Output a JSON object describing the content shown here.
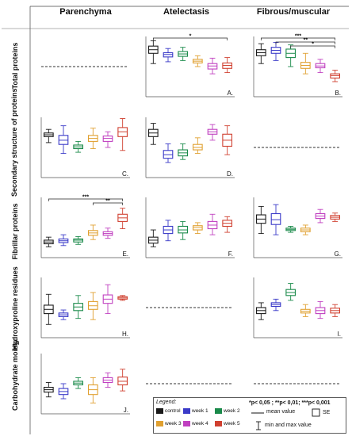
{
  "columns": [
    "Parenchyma",
    "Atelectasis",
    "Fibrous/muscular"
  ],
  "rows": [
    "Total proteins",
    "Secondary structure of proteins",
    "Fibrillar proteins",
    "Hydroxyproline residues",
    "Carbohydrate moiety"
  ],
  "groups": [
    "control",
    "week 1",
    "week 2",
    "week 3",
    "week 4",
    "week 5"
  ],
  "group_colors": [
    "#1a1a1a",
    "#3a3ac8",
    "#1a8a4a",
    "#e0a030",
    "#c040c0",
    "#d04030"
  ],
  "legend": {
    "title": "Legend:",
    "significance": "*p< 0,05 ; **p< 0,01; ***p< 0,001",
    "mean_label": "mean value",
    "se_label": "SE",
    "range_label": "min and max value"
  },
  "chart_data": [
    {
      "type": "box",
      "panel_label": "",
      "row": "Total proteins",
      "column": "Parenchyma",
      "empty": true
    },
    {
      "type": "box",
      "panel_label": "A.",
      "row": "Total proteins",
      "column": "Atelectasis",
      "empty": false,
      "series": [
        {
          "name": "control",
          "min": 0.55,
          "q1": 0.72,
          "mean": 0.78,
          "q3": 0.84,
          "max": 0.93
        },
        {
          "name": "week 1",
          "min": 0.58,
          "q1": 0.66,
          "mean": 0.7,
          "q3": 0.73,
          "max": 0.8
        },
        {
          "name": "week 2",
          "min": 0.6,
          "q1": 0.67,
          "mean": 0.71,
          "q3": 0.75,
          "max": 0.82
        },
        {
          "name": "week 3",
          "min": 0.5,
          "q1": 0.56,
          "mean": 0.59,
          "q3": 0.62,
          "max": 0.68
        },
        {
          "name": "week 4",
          "min": 0.38,
          "q1": 0.46,
          "mean": 0.51,
          "q3": 0.55,
          "max": 0.64
        },
        {
          "name": "week 5",
          "min": 0.4,
          "q1": 0.47,
          "mean": 0.52,
          "q3": 0.56,
          "max": 0.65
        }
      ],
      "significance": [
        {
          "from": 0,
          "to": 5,
          "label": "*"
        }
      ]
    },
    {
      "type": "box",
      "panel_label": "B.",
      "row": "Total proteins",
      "column": "Fibrous/muscular",
      "empty": false,
      "series": [
        {
          "name": "control",
          "min": 0.55,
          "q1": 0.68,
          "mean": 0.73,
          "q3": 0.78,
          "max": 0.88
        },
        {
          "name": "week 1",
          "min": 0.6,
          "q1": 0.72,
          "mean": 0.77,
          "q3": 0.82,
          "max": 0.9
        },
        {
          "name": "week 2",
          "min": 0.5,
          "q1": 0.65,
          "mean": 0.72,
          "q3": 0.79,
          "max": 0.86
        },
        {
          "name": "week 3",
          "min": 0.38,
          "q1": 0.47,
          "mean": 0.52,
          "q3": 0.57,
          "max": 0.72
        },
        {
          "name": "week 4",
          "min": 0.4,
          "q1": 0.48,
          "mean": 0.51,
          "q3": 0.55,
          "max": 0.62
        },
        {
          "name": "week 5",
          "min": 0.25,
          "q1": 0.31,
          "mean": 0.35,
          "q3": 0.38,
          "max": 0.44
        }
      ],
      "significance": [
        {
          "from": 0,
          "to": 5,
          "label": "***"
        },
        {
          "from": 1,
          "to": 5,
          "label": "**"
        },
        {
          "from": 2,
          "to": 5,
          "label": "*"
        }
      ]
    },
    {
      "type": "box",
      "panel_label": "C.",
      "row": "Secondary structure of proteins",
      "column": "Parenchyma",
      "empty": false,
      "series": [
        {
          "name": "control",
          "min": 0.58,
          "q1": 0.68,
          "mean": 0.71,
          "q3": 0.74,
          "max": 0.8
        },
        {
          "name": "week 1",
          "min": 0.4,
          "q1": 0.55,
          "mean": 0.62,
          "q3": 0.7,
          "max": 0.86
        },
        {
          "name": "week 2",
          "min": 0.42,
          "q1": 0.48,
          "mean": 0.51,
          "q3": 0.54,
          "max": 0.6
        },
        {
          "name": "week 3",
          "min": 0.48,
          "q1": 0.6,
          "mean": 0.65,
          "q3": 0.7,
          "max": 0.82
        },
        {
          "name": "week 4",
          "min": 0.5,
          "q1": 0.6,
          "mean": 0.65,
          "q3": 0.69,
          "max": 0.76
        },
        {
          "name": "week 5",
          "min": 0.45,
          "q1": 0.68,
          "mean": 0.76,
          "q3": 0.83,
          "max": 0.98
        }
      ],
      "significance": []
    },
    {
      "type": "box",
      "panel_label": "D.",
      "row": "Secondary structure of proteins",
      "column": "Atelectasis",
      "empty": false,
      "series": [
        {
          "name": "control",
          "min": 0.55,
          "q1": 0.68,
          "mean": 0.74,
          "q3": 0.8,
          "max": 0.9
        },
        {
          "name": "week 1",
          "min": 0.25,
          "q1": 0.32,
          "mean": 0.38,
          "q3": 0.45,
          "max": 0.56
        },
        {
          "name": "week 2",
          "min": 0.3,
          "q1": 0.36,
          "mean": 0.41,
          "q3": 0.46,
          "max": 0.56
        },
        {
          "name": "week 3",
          "min": 0.4,
          "q1": 0.46,
          "mean": 0.5,
          "q3": 0.55,
          "max": 0.66
        },
        {
          "name": "week 4",
          "min": 0.62,
          "q1": 0.72,
          "mean": 0.76,
          "q3": 0.8,
          "max": 0.88
        },
        {
          "name": "week 5",
          "min": 0.38,
          "q1": 0.52,
          "mean": 0.62,
          "q3": 0.72,
          "max": 0.86
        }
      ],
      "significance": []
    },
    {
      "type": "box",
      "panel_label": "",
      "row": "Secondary structure of proteins",
      "column": "Fibrous/muscular",
      "empty": true
    },
    {
      "type": "box",
      "panel_label": "E.",
      "row": "Fibrillar proteins",
      "column": "Parenchyma",
      "empty": false,
      "series": [
        {
          "name": "control",
          "min": 0.18,
          "q1": 0.23,
          "mean": 0.26,
          "q3": 0.29,
          "max": 0.34
        },
        {
          "name": "week 1",
          "min": 0.2,
          "q1": 0.25,
          "mean": 0.28,
          "q3": 0.31,
          "max": 0.38
        },
        {
          "name": "week 2",
          "min": 0.22,
          "q1": 0.26,
          "mean": 0.29,
          "q3": 0.31,
          "max": 0.35
        },
        {
          "name": "week 3",
          "min": 0.3,
          "q1": 0.37,
          "mean": 0.41,
          "q3": 0.45,
          "max": 0.54
        },
        {
          "name": "week 4",
          "min": 0.32,
          "q1": 0.37,
          "mean": 0.4,
          "q3": 0.43,
          "max": 0.49
        },
        {
          "name": "week 5",
          "min": 0.48,
          "q1": 0.6,
          "mean": 0.66,
          "q3": 0.72,
          "max": 0.82
        }
      ],
      "significance": [
        {
          "from": 0,
          "to": 5,
          "label": "***"
        },
        {
          "from": 3,
          "to": 5,
          "label": "**"
        }
      ]
    },
    {
      "type": "box",
      "panel_label": "F.",
      "row": "Fibrillar proteins",
      "column": "Atelectasis",
      "empty": false,
      "series": [
        {
          "name": "control",
          "min": 0.18,
          "q1": 0.24,
          "mean": 0.29,
          "q3": 0.34,
          "max": 0.46
        },
        {
          "name": "week 1",
          "min": 0.28,
          "q1": 0.4,
          "mean": 0.46,
          "q3": 0.52,
          "max": 0.62
        },
        {
          "name": "week 2",
          "min": 0.3,
          "q1": 0.41,
          "mean": 0.46,
          "q3": 0.52,
          "max": 0.6
        },
        {
          "name": "week 3",
          "min": 0.4,
          "q1": 0.46,
          "mean": 0.5,
          "q3": 0.53,
          "max": 0.58
        },
        {
          "name": "week 4",
          "min": 0.38,
          "q1": 0.48,
          "mean": 0.54,
          "q3": 0.6,
          "max": 0.72
        },
        {
          "name": "week 5",
          "min": 0.42,
          "q1": 0.52,
          "mean": 0.57,
          "q3": 0.62,
          "max": 0.68
        }
      ],
      "significance": []
    },
    {
      "type": "box",
      "panel_label": "G.",
      "row": "Fibrillar proteins",
      "column": "Fibrous/muscular",
      "empty": false,
      "series": [
        {
          "name": "control",
          "min": 0.4,
          "q1": 0.57,
          "mean": 0.64,
          "q3": 0.71,
          "max": 0.85
        },
        {
          "name": "week 1",
          "min": 0.38,
          "q1": 0.55,
          "mean": 0.63,
          "q3": 0.73,
          "max": 0.88
        },
        {
          "name": "week 2",
          "min": 0.42,
          "q1": 0.45,
          "mean": 0.47,
          "q3": 0.49,
          "max": 0.52
        },
        {
          "name": "week 3",
          "min": 0.38,
          "q1": 0.43,
          "mean": 0.46,
          "q3": 0.49,
          "max": 0.54
        },
        {
          "name": "week 4",
          "min": 0.58,
          "q1": 0.65,
          "mean": 0.69,
          "q3": 0.73,
          "max": 0.8
        },
        {
          "name": "week 5",
          "min": 0.6,
          "q1": 0.64,
          "mean": 0.67,
          "q3": 0.7,
          "max": 0.74
        }
      ],
      "significance": []
    },
    {
      "type": "box",
      "panel_label": "H.",
      "row": "Hydroxyproline residues",
      "column": "Parenchyma",
      "empty": false,
      "series": [
        {
          "name": "control",
          "min": 0.22,
          "q1": 0.4,
          "mean": 0.47,
          "q3": 0.54,
          "max": 0.72
        },
        {
          "name": "week 1",
          "min": 0.3,
          "q1": 0.35,
          "mean": 0.38,
          "q3": 0.41,
          "max": 0.46
        },
        {
          "name": "week 2",
          "min": 0.32,
          "q1": 0.45,
          "mean": 0.51,
          "q3": 0.57,
          "max": 0.7
        },
        {
          "name": "week 3",
          "min": 0.3,
          "q1": 0.47,
          "mean": 0.53,
          "q3": 0.6,
          "max": 0.75
        },
        {
          "name": "week 4",
          "min": 0.4,
          "q1": 0.57,
          "mean": 0.64,
          "q3": 0.71,
          "max": 0.88
        },
        {
          "name": "week 5",
          "min": 0.62,
          "q1": 0.64,
          "mean": 0.66,
          "q3": 0.68,
          "max": 0.7
        }
      ],
      "significance": []
    },
    {
      "type": "box",
      "panel_label": "",
      "row": "Hydroxyproline residues",
      "column": "Atelectasis",
      "empty": true
    },
    {
      "type": "box",
      "panel_label": "I.",
      "row": "Hydroxyproline residues",
      "column": "Fibrous/muscular",
      "empty": false,
      "series": [
        {
          "name": "control",
          "min": 0.3,
          "q1": 0.4,
          "mean": 0.45,
          "q3": 0.5,
          "max": 0.58
        },
        {
          "name": "week 1",
          "min": 0.45,
          "q1": 0.52,
          "mean": 0.55,
          "q3": 0.58,
          "max": 0.64
        },
        {
          "name": "week 2",
          "min": 0.62,
          "q1": 0.7,
          "mean": 0.75,
          "q3": 0.8,
          "max": 0.9
        },
        {
          "name": "week 3",
          "min": 0.35,
          "q1": 0.41,
          "mean": 0.44,
          "q3": 0.47,
          "max": 0.55
        },
        {
          "name": "week 4",
          "min": 0.32,
          "q1": 0.4,
          "mean": 0.45,
          "q3": 0.5,
          "max": 0.6
        },
        {
          "name": "week 5",
          "min": 0.35,
          "q1": 0.41,
          "mean": 0.45,
          "q3": 0.49,
          "max": 0.55
        }
      ],
      "significance": []
    },
    {
      "type": "box",
      "panel_label": "J.",
      "row": "Carbohydrate moiety",
      "column": "Parenchyma",
      "empty": false,
      "series": [
        {
          "name": "control",
          "min": 0.28,
          "q1": 0.36,
          "mean": 0.4,
          "q3": 0.44,
          "max": 0.52
        },
        {
          "name": "week 1",
          "min": 0.25,
          "q1": 0.32,
          "mean": 0.37,
          "q3": 0.42,
          "max": 0.5
        },
        {
          "name": "week 2",
          "min": 0.42,
          "q1": 0.48,
          "mean": 0.51,
          "q3": 0.54,
          "max": 0.6
        },
        {
          "name": "week 3",
          "min": 0.18,
          "q1": 0.32,
          "mean": 0.4,
          "q3": 0.48,
          "max": 0.6
        },
        {
          "name": "week 4",
          "min": 0.44,
          "q1": 0.52,
          "mean": 0.56,
          "q3": 0.6,
          "max": 0.68
        },
        {
          "name": "week 5",
          "min": 0.38,
          "q1": 0.48,
          "mean": 0.54,
          "q3": 0.61,
          "max": 0.74
        }
      ],
      "significance": []
    },
    {
      "type": "box",
      "panel_label": "",
      "row": "Carbohydrate moiety",
      "column": "Atelectasis",
      "empty": true
    },
    {
      "type": "box",
      "panel_label": "",
      "row": "Carbohydrate moiety",
      "column": "Fibrous/muscular",
      "empty": true
    }
  ]
}
